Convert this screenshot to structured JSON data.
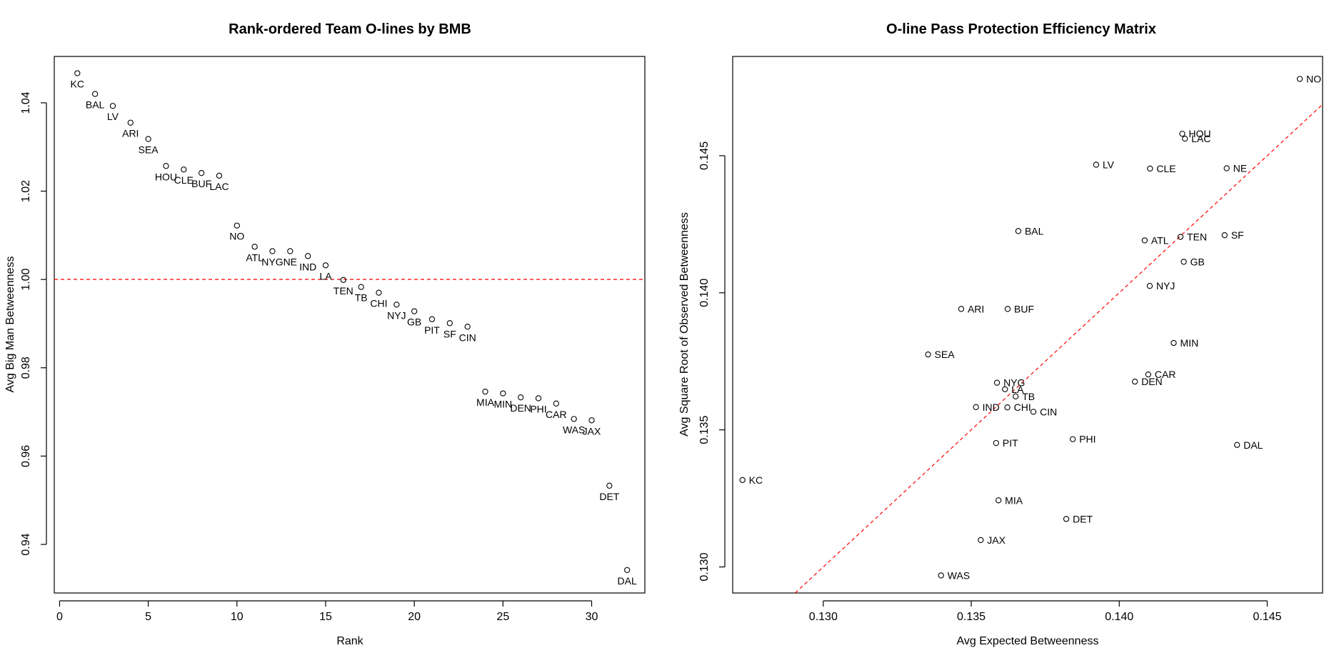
{
  "chart_data": [
    {
      "type": "scatter",
      "title": "Rank-ordered Team O-lines by BMB",
      "xlabel": "Rank",
      "ylabel": "Avg Big Man Betweenness",
      "xlim": [
        -0.3,
        33.0
      ],
      "ylim": [
        0.929,
        1.0505
      ],
      "x_ticks": [
        0,
        5,
        10,
        15,
        20,
        25,
        30
      ],
      "y_ticks": [
        0.94,
        0.96,
        0.98,
        1.0,
        1.02,
        1.04
      ],
      "x_tick_labels": [
        "0",
        "5",
        "10",
        "15",
        "20",
        "25",
        "30"
      ],
      "y_tick_labels": [
        "0.94",
        "0.96",
        "0.98",
        "1.00",
        "1.02",
        "1.04"
      ],
      "reference_line": {
        "type": "horizontal",
        "y": 1.0,
        "color": "#ff0000",
        "style": "dashed"
      },
      "label_position": "below",
      "points": [
        {
          "label": "KC",
          "x": 1,
          "y": 1.0467
        },
        {
          "label": "BAL",
          "x": 2,
          "y": 1.042
        },
        {
          "label": "LV",
          "x": 3,
          "y": 1.0393
        },
        {
          "label": "ARI",
          "x": 4,
          "y": 1.0355
        },
        {
          "label": "SEA",
          "x": 5,
          "y": 1.0318
        },
        {
          "label": "HOU",
          "x": 6,
          "y": 1.0257
        },
        {
          "label": "CLE",
          "x": 7,
          "y": 1.0249
        },
        {
          "label": "BUF",
          "x": 8,
          "y": 1.0241
        },
        {
          "label": "LAC",
          "x": 9,
          "y": 1.0235
        },
        {
          "label": "NO",
          "x": 10,
          "y": 1.0122
        },
        {
          "label": "ATL",
          "x": 11,
          "y": 1.0074
        },
        {
          "label": "NYG",
          "x": 12,
          "y": 1.0064
        },
        {
          "label": "NE",
          "x": 13,
          "y": 1.0064
        },
        {
          "label": "IND",
          "x": 14,
          "y": 1.0053
        },
        {
          "label": "LA",
          "x": 15,
          "y": 1.0032
        },
        {
          "label": "TEN",
          "x": 16,
          "y": 0.9999
        },
        {
          "label": "TB",
          "x": 17,
          "y": 0.9983
        },
        {
          "label": "CHI",
          "x": 18,
          "y": 0.997
        },
        {
          "label": "NYJ",
          "x": 19,
          "y": 0.9943
        },
        {
          "label": "GB",
          "x": 20,
          "y": 0.9928
        },
        {
          "label": "PIT",
          "x": 21,
          "y": 0.991
        },
        {
          "label": "SF",
          "x": 22,
          "y": 0.9901
        },
        {
          "label": "CIN",
          "x": 23,
          "y": 0.9893
        },
        {
          "label": "MIA",
          "x": 24,
          "y": 0.9746
        },
        {
          "label": "MIN",
          "x": 25,
          "y": 0.9742
        },
        {
          "label": "DEN",
          "x": 26,
          "y": 0.9733
        },
        {
          "label": "PHI",
          "x": 27,
          "y": 0.9731
        },
        {
          "label": "CAR",
          "x": 28,
          "y": 0.9719
        },
        {
          "label": "WAS",
          "x": 29,
          "y": 0.9684
        },
        {
          "label": "JAX",
          "x": 30,
          "y": 0.9681
        },
        {
          "label": "DET",
          "x": 31,
          "y": 0.9533
        },
        {
          "label": "DAL",
          "x": 32,
          "y": 0.9342
        }
      ]
    },
    {
      "type": "scatter",
      "title": "O-line Pass Protection Efficiency Matrix",
      "xlabel": "Avg Expected Betweenness",
      "ylabel": "Avg Square Root of Observed Betweenness",
      "xlim": [
        0.12694,
        0.14687
      ],
      "ylim": [
        0.12905,
        0.14862
      ],
      "x_ticks": [
        0.13,
        0.135,
        0.14,
        0.145
      ],
      "y_ticks": [
        0.13,
        0.135,
        0.14,
        0.145
      ],
      "x_tick_labels": [
        "0.130",
        "0.135",
        "0.140",
        "0.145"
      ],
      "y_tick_labels": [
        "0.130",
        "0.135",
        "0.140",
        "0.145"
      ],
      "reference_line": {
        "type": "identity",
        "slope": 1,
        "intercept": 0,
        "color": "#ff0000",
        "style": "dashed"
      },
      "label_position": "right",
      "points": [
        {
          "label": "NO",
          "x": 0.1461,
          "y": 0.1478
        },
        {
          "label": "HOU",
          "x": 0.14213,
          "y": 0.1458
        },
        {
          "label": "LAC",
          "x": 0.14222,
          "y": 0.14562
        },
        {
          "label": "LV",
          "x": 0.13922,
          "y": 0.14467
        },
        {
          "label": "CLE",
          "x": 0.14104,
          "y": 0.14453
        },
        {
          "label": "NE",
          "x": 0.14363,
          "y": 0.14454
        },
        {
          "label": "BAL",
          "x": 0.13659,
          "y": 0.14225
        },
        {
          "label": "ATL",
          "x": 0.14086,
          "y": 0.14191
        },
        {
          "label": "TEN",
          "x": 0.14207,
          "y": 0.14204
        },
        {
          "label": "SF",
          "x": 0.14356,
          "y": 0.1421
        },
        {
          "label": "GB",
          "x": 0.14218,
          "y": 0.14113
        },
        {
          "label": "NYJ",
          "x": 0.14103,
          "y": 0.14025
        },
        {
          "label": "ARI",
          "x": 0.13466,
          "y": 0.13941
        },
        {
          "label": "BUF",
          "x": 0.13623,
          "y": 0.13941
        },
        {
          "label": "MIN",
          "x": 0.14184,
          "y": 0.13817
        },
        {
          "label": "SEA",
          "x": 0.13354,
          "y": 0.13775
        },
        {
          "label": "CAR",
          "x": 0.14098,
          "y": 0.13702
        },
        {
          "label": "DEN",
          "x": 0.14053,
          "y": 0.13676
        },
        {
          "label": "NYG",
          "x": 0.13587,
          "y": 0.13672
        },
        {
          "label": "LA",
          "x": 0.13614,
          "y": 0.13648
        },
        {
          "label": "TB",
          "x": 0.1365,
          "y": 0.13622
        },
        {
          "label": "IND",
          "x": 0.13516,
          "y": 0.13583
        },
        {
          "label": "CHI",
          "x": 0.13622,
          "y": 0.13582
        },
        {
          "label": "CIN",
          "x": 0.1371,
          "y": 0.13566
        },
        {
          "label": "PIT",
          "x": 0.13584,
          "y": 0.13452
        },
        {
          "label": "PHI",
          "x": 0.13843,
          "y": 0.13466
        },
        {
          "label": "DAL",
          "x": 0.14398,
          "y": 0.13445
        },
        {
          "label": "KC",
          "x": 0.12727,
          "y": 0.13317
        },
        {
          "label": "MIA",
          "x": 0.13592,
          "y": 0.13243
        },
        {
          "label": "DET",
          "x": 0.13821,
          "y": 0.13175
        },
        {
          "label": "JAX",
          "x": 0.13532,
          "y": 0.13098
        },
        {
          "label": "WAS",
          "x": 0.13398,
          "y": 0.12969
        }
      ]
    }
  ]
}
